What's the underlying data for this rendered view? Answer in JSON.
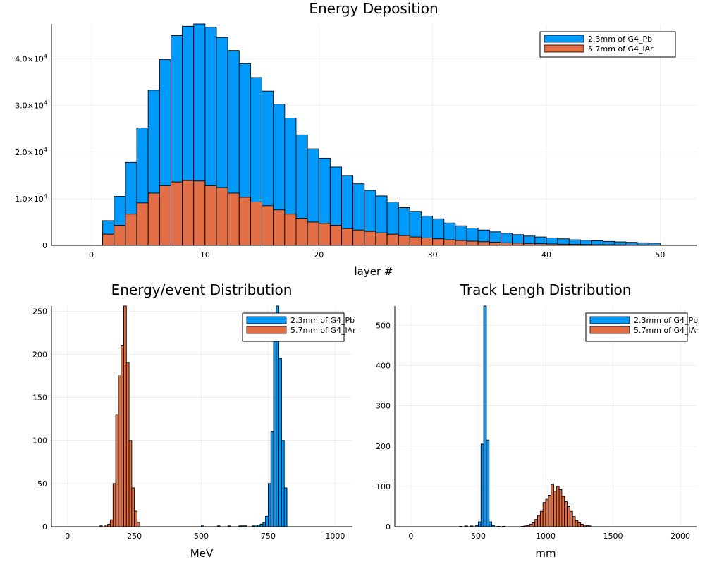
{
  "chart_data": [
    {
      "type": "bar",
      "title": "Energy Deposition",
      "xlabel": "layer #",
      "ylabel": "",
      "xlim": [
        -3.5,
        53.2
      ],
      "ylim": [
        0,
        47500
      ],
      "xticks": [
        0,
        10,
        20,
        30,
        40,
        50
      ],
      "xtick_labels": [
        "0",
        "10",
        "20",
        "30",
        "40",
        "50"
      ],
      "yticks": [
        0,
        10000,
        20000,
        30000,
        40000
      ],
      "ytick_labels": [
        {
          "base": "0",
          "exp": ""
        },
        {
          "base": "1.0×10",
          "exp": "4"
        },
        {
          "base": "2.0×10",
          "exp": "4"
        },
        {
          "base": "3.0×10",
          "exp": "4"
        },
        {
          "base": "4.0×10",
          "exp": "4"
        }
      ],
      "grid": true,
      "legend_position": "top-right",
      "bin_edges_start": 1,
      "bin_width": 1,
      "series": [
        {
          "name": "2.3mm of G4_Pb",
          "color": "#009AFA",
          "values": [
            5300,
            10500,
            17800,
            25200,
            33300,
            39900,
            45000,
            47000,
            47500,
            46800,
            44600,
            41800,
            39000,
            36000,
            33100,
            30300,
            27300,
            23700,
            20700,
            18700,
            16800,
            15000,
            13200,
            11800,
            10600,
            9300,
            8100,
            7300,
            6300,
            5700,
            4800,
            4200,
            3700,
            3300,
            2900,
            2600,
            2300,
            2000,
            1800,
            1600,
            1400,
            1200,
            1100,
            1000,
            850,
            750,
            650,
            550,
            480
          ]
        },
        {
          "name": "5.7mm of G4_lAr",
          "color": "#E26F46",
          "values": [
            2400,
            4300,
            6700,
            9100,
            11200,
            12800,
            13600,
            13900,
            13800,
            12800,
            12400,
            11200,
            10300,
            9300,
            8500,
            7600,
            6700,
            5800,
            5000,
            4700,
            4300,
            3600,
            3300,
            3000,
            2700,
            2400,
            2100,
            1800,
            1600,
            1400,
            1200,
            1050,
            900,
            780,
            670,
            560,
            480,
            410,
            350,
            300,
            250,
            210,
            180,
            150,
            130,
            110,
            90,
            75,
            60
          ]
        }
      ]
    },
    {
      "type": "bar",
      "title": "Energy/event Distribution",
      "xlabel": "MeV",
      "ylabel": "",
      "xlim": [
        -60,
        1065
      ],
      "ylim": [
        0,
        256
      ],
      "xticks": [
        0,
        250,
        500,
        750,
        1000
      ],
      "xtick_labels": [
        "0",
        "250",
        "500",
        "750",
        "1000"
      ],
      "yticks": [
        0,
        50,
        100,
        150,
        200,
        250
      ],
      "ytick_labels": [
        "0",
        "50",
        "100",
        "150",
        "200",
        "250"
      ],
      "grid": true,
      "legend_position": "top-right",
      "bin_width": 10,
      "series": [
        {
          "name": "2.3mm of G4_Pb",
          "color": "#009AFA",
          "x": [
            500,
            560,
            600,
            640,
            650,
            660,
            690,
            700,
            710,
            720,
            730,
            740,
            750,
            760,
            770,
            780,
            790,
            800,
            810
          ],
          "values": [
            2,
            1,
            1,
            1,
            1,
            1,
            1,
            2,
            2,
            3,
            5,
            12,
            50,
            110,
            215,
            256,
            195,
            100,
            45
          ]
        },
        {
          "name": "5.7mm of G4_lAr",
          "color": "#E26F46",
          "x": [
            120,
            140,
            150,
            160,
            170,
            180,
            190,
            200,
            210,
            220,
            230,
            240,
            250,
            260
          ],
          "values": [
            1,
            2,
            3,
            8,
            50,
            130,
            175,
            210,
            256,
            190,
            100,
            45,
            18,
            5
          ]
        }
      ]
    },
    {
      "type": "bar",
      "title": "Track Lengh Distribution",
      "xlabel": "mm",
      "ylabel": "",
      "xlim": [
        -120,
        2120
      ],
      "ylim": [
        0,
        548
      ],
      "xticks": [
        0,
        500,
        1000,
        1500,
        2000
      ],
      "xtick_labels": [
        "0",
        "500",
        "1000",
        "1500",
        "2000"
      ],
      "yticks": [
        0,
        100,
        200,
        300,
        400,
        500
      ],
      "ytick_labels": [
        "0",
        "100",
        "200",
        "300",
        "400",
        "500"
      ],
      "grid": true,
      "legend_position": "top-right",
      "bin_width": 20,
      "series": [
        {
          "name": "2.3mm of G4_Pb",
          "color": "#009AFA",
          "x": [
            360,
            400,
            440,
            480,
            500,
            520,
            540,
            560,
            580,
            600,
            640,
            680
          ],
          "values": [
            1,
            2,
            2,
            3,
            12,
            205,
            548,
            215,
            12,
            3,
            1,
            1
          ]
        },
        {
          "name": "5.7mm of G4_lAr",
          "color": "#E26F46",
          "x": [
            820,
            840,
            860,
            880,
            900,
            920,
            940,
            960,
            980,
            1000,
            1020,
            1040,
            1060,
            1080,
            1100,
            1120,
            1140,
            1160,
            1180,
            1200,
            1220,
            1240,
            1260,
            1280,
            1300,
            1320
          ],
          "values": [
            1,
            2,
            3,
            6,
            10,
            18,
            28,
            38,
            60,
            68,
            78,
            105,
            88,
            100,
            92,
            75,
            62,
            50,
            38,
            25,
            15,
            10,
            6,
            4,
            3,
            2
          ]
        }
      ]
    }
  ]
}
